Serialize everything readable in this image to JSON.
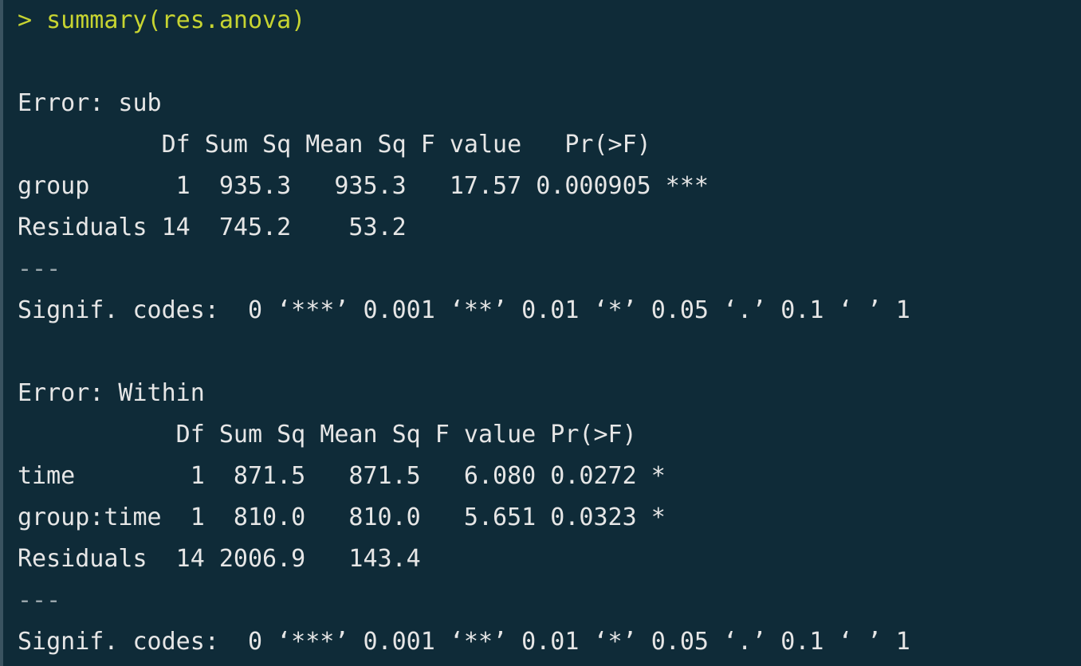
{
  "console": {
    "command_line": "> summary(res.anova)",
    "blocks": [
      {
        "error_header": "Error: sub",
        "table_header": "          Df Sum Sq Mean Sq F value   Pr(>F)    ",
        "rows": [
          "group      1  935.3   935.3   17.57 0.000905 ***",
          "Residuals 14  745.2    53.2                  "
        ],
        "separator": "---",
        "signif_codes": "Signif. codes:  0 ‘***’ 0.001 ‘**’ 0.01 ‘*’ 0.05 ‘.’ 0.1 ‘ ’ 1"
      },
      {
        "error_header": "Error: Within",
        "table_header": "           Df Sum Sq Mean Sq F value Pr(>F)  ",
        "rows": [
          "time        1  871.5   871.5   6.080 0.0272 *",
          "group:time  1  810.0   810.0   5.651 0.0323 *",
          "Residuals  14 2006.9   143.4                 "
        ],
        "separator": "---",
        "signif_codes": "Signif. codes:  0 ‘***’ 0.001 ‘**’ 0.01 ‘*’ 0.05 ‘.’ 0.1 ‘ ’ 1"
      }
    ]
  }
}
